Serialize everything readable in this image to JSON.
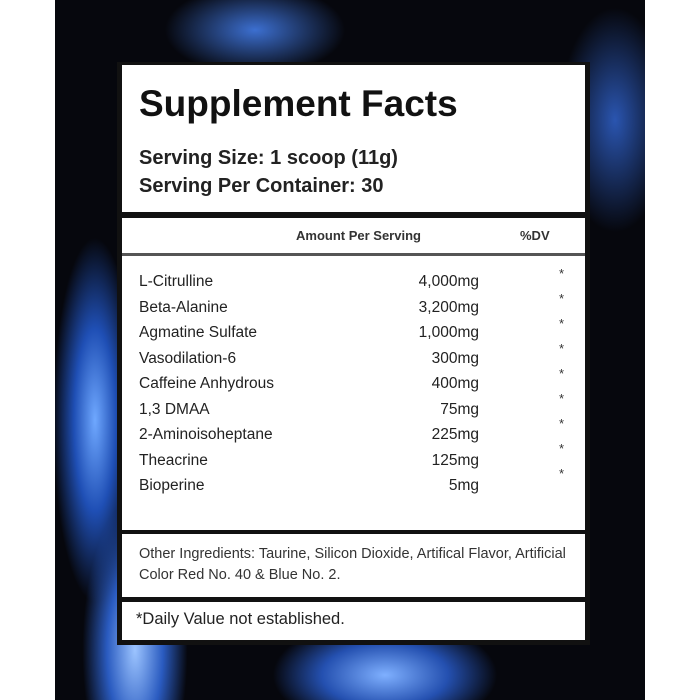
{
  "title": "Supplement Facts",
  "serving_size": "Serving Size: 1 scoop (11g)",
  "servings_per_container": "Serving Per Container: 30",
  "columns": {
    "amount": "Amount Per Serving",
    "dv": "%DV"
  },
  "ingredients": [
    {
      "name": "L-Citrulline",
      "amount": "4,000mg",
      "dv": "*"
    },
    {
      "name": "Beta-Alanine",
      "amount": "3,200mg",
      "dv": "*"
    },
    {
      "name": "Agmatine Sulfate",
      "amount": "1,000mg",
      "dv": "*"
    },
    {
      "name": "Vasodilation-6",
      "amount": "300mg",
      "dv": "*"
    },
    {
      "name": "Caffeine Anhydrous",
      "amount": "400mg",
      "dv": "*"
    },
    {
      "name": "1,3 DMAA",
      "amount": "75mg",
      "dv": "*"
    },
    {
      "name": "2-Aminoisoheptane",
      "amount": "225mg",
      "dv": "*"
    },
    {
      "name": "Theacrine",
      "amount": "125mg",
      "dv": "*"
    },
    {
      "name": "Bioperine",
      "amount": "5mg",
      "dv": "*"
    }
  ],
  "other_ingredients": "Other Ingredients: Taurine, Silicon Dioxide, Artifical Flavor, Artificial Color Red No. 40 & Blue No. 2.",
  "footnote": "*Daily Value not established."
}
